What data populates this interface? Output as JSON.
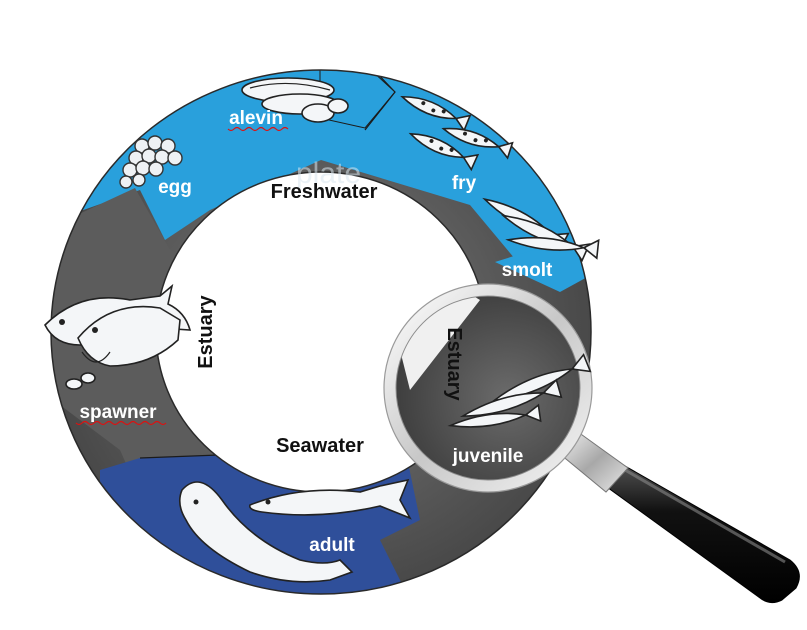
{
  "diagram": {
    "zones": {
      "freshwater": "Freshwater",
      "estuary_left": "Estuary",
      "seawater": "Seawater",
      "estuary_lens": "Estuary"
    },
    "stages": {
      "egg": "egg",
      "alevin": "alevin",
      "fry": "fry",
      "smolt": "smolt",
      "juvenile": "juvenile",
      "adult": "adult",
      "spawner": "spawner"
    },
    "watermark": "plate",
    "colors": {
      "freshwater": "#29a0dc",
      "estuary_gray": "#5a5a5a",
      "seawater": "#2f4f9a",
      "magnifier_handle": "#111111"
    }
  }
}
